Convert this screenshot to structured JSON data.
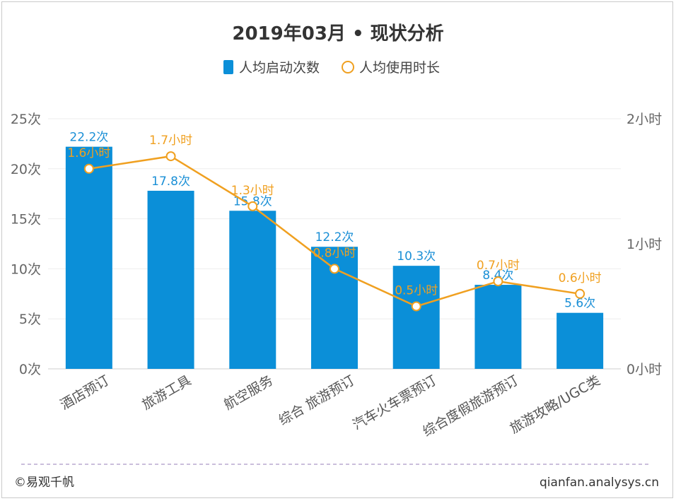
{
  "chart_data": {
    "type": "bar+line",
    "title": "2019年03月 • 现状分析",
    "categories": [
      "酒店预订",
      "旅游工具",
      "航空服务",
      "综合 旅游预订",
      "汽车火车票预订",
      "综合度假旅游预订",
      "旅游攻略/UGC类"
    ],
    "series": [
      {
        "name": "人均启动次数",
        "type": "bar",
        "axis": "left",
        "values": [
          22.2,
          17.8,
          15.8,
          12.2,
          10.3,
          8.4,
          5.6
        ],
        "labels": [
          "22.2次",
          "17.8次",
          "15.8次",
          "12.2次",
          "10.3次",
          "8.4次",
          "5.6次"
        ],
        "color": "#0b8fd8"
      },
      {
        "name": "人均使用时长",
        "type": "line",
        "axis": "right",
        "values": [
          1.6,
          1.7,
          1.3,
          0.8,
          0.5,
          0.7,
          0.6
        ],
        "labels": [
          "1.6小时",
          "1.7小时",
          "1.3小时",
          "0.8小时",
          "0.5小时",
          "0.7小时",
          "0.6小时"
        ],
        "color": "#f0a020"
      }
    ],
    "y_left": {
      "ylim": [
        0,
        25
      ],
      "ticks": [
        "0次",
        "5次",
        "10次",
        "15次",
        "20次",
        "25次"
      ]
    },
    "y_right": {
      "ylim": [
        0,
        2
      ],
      "ticks": [
        "0小时",
        "1小时",
        "2小时"
      ]
    },
    "grid": true,
    "legend": "top-center"
  },
  "footer": {
    "source": "©易观千帆",
    "site": "qianfan.analysys.cn"
  }
}
